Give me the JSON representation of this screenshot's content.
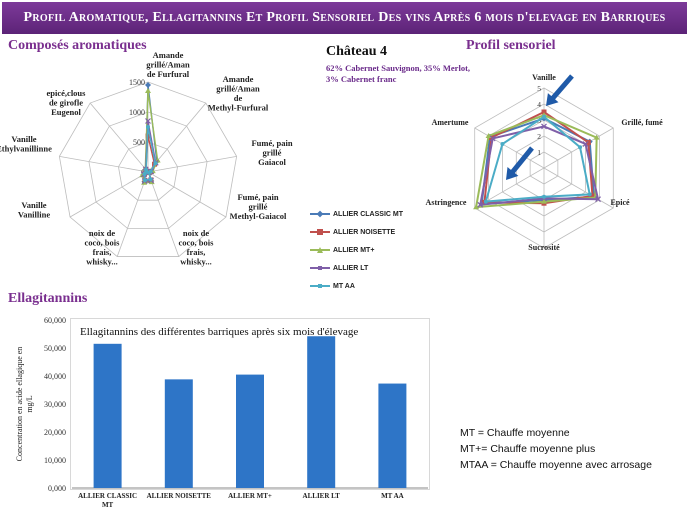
{
  "page": {
    "title": "Profil Aromatique, Ellagitannins Et Profil Sensoriel Des vins Après 6 mois d'elevage en Barriques",
    "colors": {
      "title_bar": "#6b2c87",
      "section_title": "#7a2f8f",
      "bar": "#2e75c7"
    }
  },
  "aroma": {
    "section_title": "Composés aromatiques"
  },
  "wine": {
    "name": "Château 4",
    "description": "62% Cabernet Sauvignon, 35% Merlot, 3% Cabernet franc"
  },
  "sensory": {
    "section_title": "Profil sensoriel"
  },
  "ellagitannins": {
    "section_title": "Ellagitannins"
  },
  "notes": [
    "MT = Chauffe moyenne",
    "MT+= Chauffe moyenne plus",
    "MTAA = Chauffe moyenne avec arrosage"
  ],
  "chart_data": [
    {
      "type": "radar",
      "title": "",
      "axes": [
        "Amande grillé/Aman de Furfural",
        "Amande grillé/Aman de Methyl-Furfural",
        "Fumé, pain grillé Gaiacol",
        "Fumé, pain grillé Methyl-Gaiacol",
        "noix de coco, bois frais, whisky...",
        "noix de coco, bois frais, whisky...",
        "Vanille Vanilline",
        "Vanille Ethylvanillinne",
        "epicé,clous de girofle Eugenol"
      ],
      "ticks": [
        0,
        500,
        1000,
        1500
      ],
      "range": [
        0,
        1500
      ],
      "series": [
        {
          "name": "ALLIER CLASSIC MT",
          "color": "#4a7bb7",
          "marker": "diamond",
          "values": [
            1450,
            230,
            60,
            20,
            160,
            170,
            90,
            40,
            60
          ]
        },
        {
          "name": "ALLIER NOISETTE",
          "color": "#c0504d",
          "marker": "square",
          "values": [
            600,
            170,
            50,
            15,
            140,
            150,
            70,
            30,
            55
          ]
        },
        {
          "name": "ALLIER MT+",
          "color": "#9bbb59",
          "marker": "triangle",
          "values": [
            1350,
            250,
            80,
            25,
            180,
            190,
            110,
            45,
            70
          ]
        },
        {
          "name": "ALLIER LT",
          "color": "#7f5fa8",
          "marker": "x",
          "values": [
            850,
            200,
            55,
            20,
            150,
            160,
            80,
            35,
            60
          ]
        },
        {
          "name": "MT AA",
          "color": "#4bacc6",
          "marker": "star",
          "values": [
            750,
            190,
            45,
            18,
            130,
            145,
            65,
            28,
            50
          ]
        }
      ]
    },
    {
      "type": "radar",
      "title": "",
      "axes": [
        "Vanille",
        "Grillé, fumé",
        "Epicé",
        "Sucrosité",
        "Astringence",
        "Amertume"
      ],
      "ticks": [
        1,
        2,
        3,
        4,
        5
      ],
      "range": [
        0,
        5
      ],
      "series": [
        {
          "name": "ALLIER CLASSIC MT",
          "color": "#4a7bb7",
          "marker": "diamond",
          "values": [
            3.1,
            3.3,
            3.6,
            2.0,
            4.5,
            3.9
          ]
        },
        {
          "name": "ALLIER NOISETTE",
          "color": "#c0504d",
          "marker": "square",
          "values": [
            3.5,
            3.2,
            3.5,
            2.2,
            4.3,
            3.8
          ]
        },
        {
          "name": "ALLIER MT+",
          "color": "#9bbb59",
          "marker": "triangle",
          "values": [
            3.3,
            3.8,
            3.7,
            2.1,
            4.9,
            4.0
          ]
        },
        {
          "name": "ALLIER LT",
          "color": "#7f5fa8",
          "marker": "x",
          "values": [
            2.6,
            3.0,
            3.9,
            1.9,
            4.6,
            3.7
          ]
        },
        {
          "name": "MT AA",
          "color": "#4bacc6",
          "marker": "star",
          "values": [
            3.2,
            2.6,
            3.3,
            1.8,
            4.2,
            3.0
          ]
        }
      ]
    },
    {
      "type": "bar",
      "title": "Ellagitannins des différentes barriques après six mois d'élevage",
      "xlabel": "",
      "ylabel": "Concentration en acide ellagique en mg/L",
      "categories": [
        "ALLIER CLASSIC MT",
        "ALLIER NOISETTE",
        "ALLIER MT+",
        "ALLIER LT",
        "MT AA"
      ],
      "values": [
        51500,
        38800,
        40500,
        54200,
        37300
      ],
      "yticks": [
        "0,000",
        "10,000",
        "20,000",
        "30,000",
        "40,000",
        "50,000",
        "60,000"
      ],
      "ylim": [
        0,
        60000
      ],
      "grid": false,
      "color": "#2e75c7"
    }
  ]
}
